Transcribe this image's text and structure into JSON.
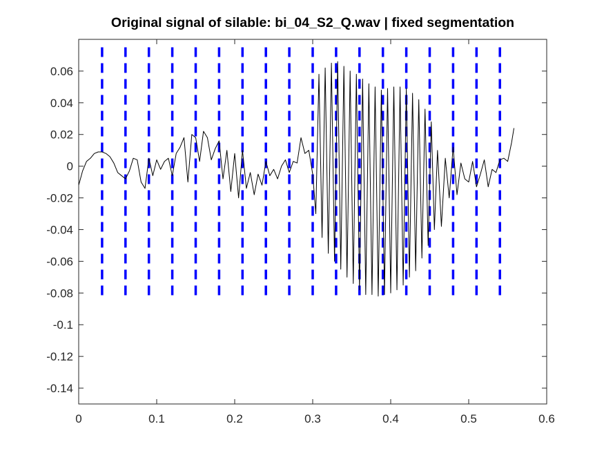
{
  "chart_data": {
    "type": "line",
    "title": "Original signal of silable: bi_04_S2_Q.wav | fixed segmentation",
    "xlabel": "",
    "ylabel": "",
    "xlim": [
      0,
      0.6
    ],
    "ylim": [
      -0.15,
      0.08
    ],
    "x_ticks": [
      0,
      0.1,
      0.2,
      0.3,
      0.4,
      0.5,
      0.6
    ],
    "x_tick_labels": [
      "0",
      "0.1",
      "0.2",
      "0.3",
      "0.4",
      "0.5",
      "0.6"
    ],
    "y_ticks": [
      0.06,
      0.04,
      0.02,
      0,
      -0.02,
      -0.04,
      -0.06,
      -0.08,
      -0.1,
      -0.12,
      -0.14
    ],
    "y_tick_labels": [
      "0.06",
      "0.04",
      "0.02",
      "0",
      "-0.02",
      "-0.04",
      "-0.06",
      "-0.08",
      "-0.1",
      "-0.12",
      "-0.14"
    ],
    "grid": false,
    "series": [
      {
        "color": "#000000",
        "style": "solid",
        "x": [
          0,
          0.005,
          0.01,
          0.015,
          0.02,
          0.025,
          0.03,
          0.035,
          0.04,
          0.045,
          0.05,
          0.055,
          0.06,
          0.065,
          0.07,
          0.075,
          0.08,
          0.085,
          0.09,
          0.095,
          0.1,
          0.105,
          0.11,
          0.115,
          0.12,
          0.125,
          0.13,
          0.135,
          0.14,
          0.145,
          0.15,
          0.155,
          0.16,
          0.165,
          0.17,
          0.175,
          0.18,
          0.185,
          0.19,
          0.195,
          0.2,
          0.205,
          0.21,
          0.215,
          0.22,
          0.225,
          0.23,
          0.235,
          0.24,
          0.245,
          0.25,
          0.255,
          0.26,
          0.265,
          0.27,
          0.275,
          0.28,
          0.285,
          0.29,
          0.295,
          0.3,
          0.304,
          0.308,
          0.312,
          0.316,
          0.32,
          0.324,
          0.328,
          0.332,
          0.336,
          0.34,
          0.344,
          0.348,
          0.352,
          0.356,
          0.36,
          0.364,
          0.368,
          0.372,
          0.376,
          0.38,
          0.384,
          0.388,
          0.392,
          0.396,
          0.4,
          0.404,
          0.408,
          0.412,
          0.416,
          0.42,
          0.424,
          0.428,
          0.432,
          0.436,
          0.44,
          0.444,
          0.448,
          0.452,
          0.456,
          0.46,
          0.465,
          0.47,
          0.475,
          0.48,
          0.485,
          0.49,
          0.495,
          0.5,
          0.505,
          0.51,
          0.515,
          0.52,
          0.525,
          0.53,
          0.535,
          0.54,
          0.545,
          0.55,
          0.555,
          0.558
        ],
        "y": [
          -0.012,
          -0.003,
          0.003,
          0.005,
          0.008,
          0.009,
          0.009,
          0.008,
          0.006,
          0.002,
          -0.004,
          -0.006,
          -0.008,
          -0.003,
          0.005,
          0.004,
          -0.01,
          -0.014,
          0.005,
          -0.006,
          0.004,
          -0.002,
          0.003,
          0.005,
          -0.006,
          0.008,
          0.012,
          0.018,
          -0.01,
          0.02,
          0.018,
          0.003,
          0.022,
          0.018,
          0.004,
          0.011,
          0.016,
          -0.008,
          0.01,
          -0.016,
          0.008,
          -0.02,
          0.01,
          -0.014,
          -0.004,
          -0.018,
          -0.005,
          -0.012,
          0.003,
          -0.006,
          -0.002,
          -0.008,
          0.0,
          0.004,
          -0.004,
          0.003,
          0.002,
          0.018,
          0.008,
          0.01,
          -0.005,
          -0.03,
          0.058,
          -0.045,
          0.062,
          -0.055,
          0.065,
          -0.06,
          0.066,
          -0.065,
          0.063,
          -0.07,
          0.06,
          -0.074,
          0.058,
          -0.078,
          0.055,
          -0.081,
          0.052,
          -0.081,
          0.05,
          -0.082,
          0.048,
          -0.081,
          0.049,
          -0.08,
          0.05,
          -0.078,
          0.05,
          -0.075,
          0.049,
          -0.07,
          0.046,
          -0.066,
          0.042,
          -0.058,
          0.036,
          -0.05,
          0.028,
          -0.04,
          0.01,
          -0.038,
          0.005,
          -0.02,
          0.012,
          -0.018,
          0.002,
          -0.008,
          -0.01,
          0.003,
          -0.013,
          -0.005,
          0.004,
          -0.013,
          -0.002,
          -0.004,
          0.004,
          0.005,
          0.003,
          0.015,
          0.024
        ]
      }
    ],
    "segment_boundaries": {
      "color": "#0000ff",
      "style": "dashed",
      "x": [
        0.03,
        0.06,
        0.09,
        0.12,
        0.15,
        0.18,
        0.21,
        0.24,
        0.27,
        0.3,
        0.33,
        0.36,
        0.39,
        0.42,
        0.45,
        0.48,
        0.51,
        0.54
      ],
      "y_range": [
        -0.083,
        0.075
      ]
    }
  }
}
